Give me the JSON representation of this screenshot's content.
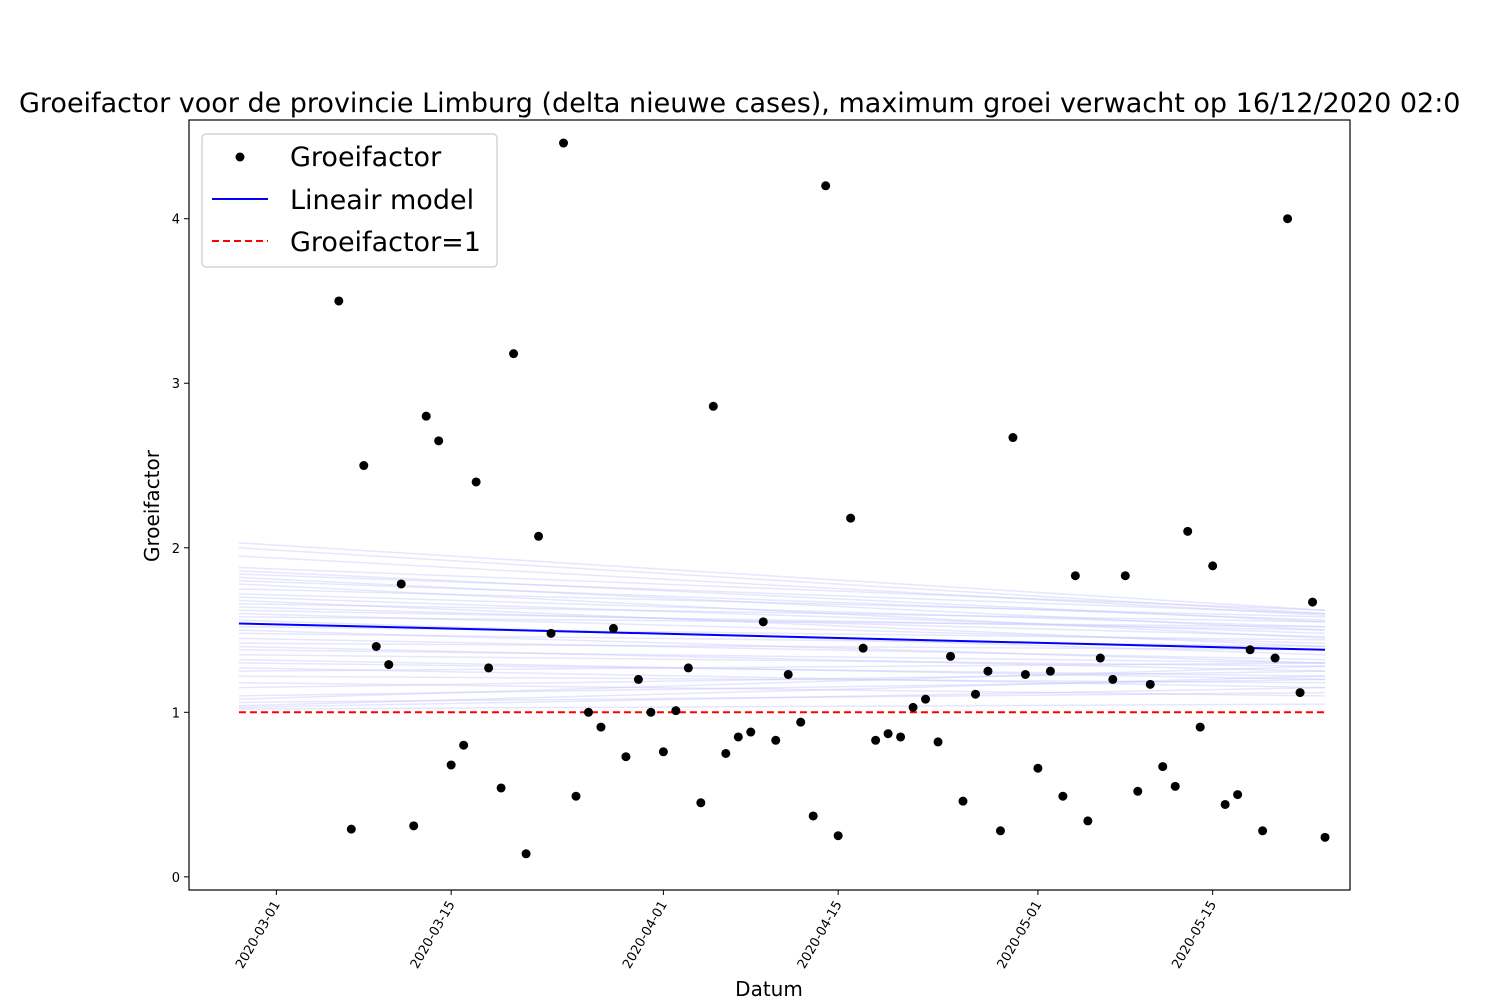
{
  "chart_data": {
    "type": "scatter",
    "title": "Groeifactor voor de provincie Limburg (delta nieuwe cases), maximum groei verwacht op 16/12/2020 02:0",
    "xlabel": "Datum",
    "ylabel": "Groeifactor",
    "x_start_date": "2020-02-27",
    "xlim": [
      "2020-02-23",
      "2020-05-26"
    ],
    "ylim": [
      -0.08,
      4.6
    ],
    "yticks": [
      0,
      1,
      2,
      3,
      4
    ],
    "xticks": [
      "2020-03-01",
      "2020-03-15",
      "2020-04-01",
      "2020-04-15",
      "2020-05-01",
      "2020-05-15"
    ],
    "grid": false,
    "legend_position": "top-left",
    "legend": [
      "Groeifactor",
      "Lineair model",
      "Groeifactor=1"
    ],
    "colors": {
      "points": "#000000",
      "model": "#0000ff",
      "reference": "#ff0000",
      "samples": "#c8c8ff"
    },
    "series": [
      {
        "name": "Groeifactor",
        "kind": "points",
        "x": [
          "2020-03-06",
          "2020-03-07",
          "2020-03-08",
          "2020-03-09",
          "2020-03-10",
          "2020-03-11",
          "2020-03-12",
          "2020-03-13",
          "2020-03-14",
          "2020-03-15",
          "2020-03-16",
          "2020-03-17",
          "2020-03-18",
          "2020-03-19",
          "2020-03-20",
          "2020-03-21",
          "2020-03-22",
          "2020-03-23",
          "2020-03-24",
          "2020-03-25",
          "2020-03-26",
          "2020-03-27",
          "2020-03-28",
          "2020-03-29",
          "2020-03-30",
          "2020-03-31",
          "2020-04-01",
          "2020-04-02",
          "2020-04-03",
          "2020-04-04",
          "2020-04-05",
          "2020-04-06",
          "2020-04-07",
          "2020-04-08",
          "2020-04-09",
          "2020-04-10",
          "2020-04-11",
          "2020-04-12",
          "2020-04-13",
          "2020-04-14",
          "2020-04-15",
          "2020-04-16",
          "2020-04-17",
          "2020-04-18",
          "2020-04-19",
          "2020-04-20",
          "2020-04-21",
          "2020-04-22",
          "2020-04-23",
          "2020-04-24",
          "2020-04-25",
          "2020-04-26",
          "2020-04-27",
          "2020-04-28",
          "2020-04-29",
          "2020-04-30",
          "2020-05-01",
          "2020-05-02",
          "2020-05-03",
          "2020-05-04",
          "2020-05-05",
          "2020-05-06",
          "2020-05-07",
          "2020-05-08",
          "2020-05-09",
          "2020-05-10",
          "2020-05-11",
          "2020-05-12",
          "2020-05-13",
          "2020-05-14",
          "2020-05-15",
          "2020-05-16",
          "2020-05-17",
          "2020-05-18",
          "2020-05-19",
          "2020-05-20",
          "2020-05-21",
          "2020-05-22",
          "2020-05-23",
          "2020-05-24"
        ],
        "y": [
          3.5,
          0.29,
          2.5,
          1.4,
          1.29,
          1.78,
          0.31,
          2.8,
          2.65,
          0.68,
          0.8,
          2.4,
          1.27,
          0.54,
          3.18,
          0.14,
          2.07,
          1.48,
          4.46,
          0.49,
          1.0,
          0.91,
          1.51,
          0.73,
          1.2,
          1.0,
          0.76,
          1.01,
          1.27,
          0.45,
          2.86,
          0.75,
          0.85,
          0.88,
          1.55,
          0.83,
          1.23,
          0.94,
          0.37,
          4.2,
          0.25,
          2.18,
          1.39,
          0.83,
          0.87,
          0.85,
          1.03,
          1.08,
          0.82,
          1.34,
          0.46,
          1.11,
          1.25,
          0.28,
          2.67,
          1.23,
          0.66,
          1.25,
          0.49,
          1.83,
          0.34,
          1.33,
          1.2,
          1.83,
          0.52,
          1.17,
          0.67,
          0.55,
          2.1,
          0.91,
          1.89,
          0.44,
          0.5,
          1.38,
          0.28,
          1.33,
          4.0,
          1.12,
          1.67,
          0.24
        ]
      },
      {
        "name": "Lineair model",
        "kind": "line",
        "x": [
          "2020-02-27",
          "2020-05-24"
        ],
        "y": [
          1.54,
          1.38
        ]
      },
      {
        "name": "Groeifactor=1",
        "kind": "dashed-line",
        "x": [
          "2020-02-27",
          "2020-05-24"
        ],
        "y": [
          1.0,
          1.0
        ]
      }
    ],
    "model_samples": [
      [
        2.03,
        1.62
      ],
      [
        2.0,
        1.6
      ],
      [
        1.95,
        1.59
      ],
      [
        1.88,
        1.62
      ],
      [
        1.86,
        1.55
      ],
      [
        1.84,
        1.6
      ],
      [
        1.82,
        1.5
      ],
      [
        1.8,
        1.56
      ],
      [
        1.78,
        1.45
      ],
      [
        1.75,
        1.58
      ],
      [
        1.72,
        1.52
      ],
      [
        1.7,
        1.48
      ],
      [
        1.68,
        1.4
      ],
      [
        1.66,
        1.55
      ],
      [
        1.64,
        1.46
      ],
      [
        1.62,
        1.5
      ],
      [
        1.6,
        1.42
      ],
      [
        1.58,
        1.52
      ],
      [
        1.56,
        1.35
      ],
      [
        1.52,
        1.44
      ],
      [
        1.5,
        1.3
      ],
      [
        1.48,
        1.4
      ],
      [
        1.45,
        1.32
      ],
      [
        1.42,
        1.38
      ],
      [
        1.4,
        1.25
      ],
      [
        1.38,
        1.3
      ],
      [
        1.35,
        1.28
      ],
      [
        1.32,
        1.2
      ],
      [
        1.3,
        1.22
      ],
      [
        1.27,
        1.15
      ],
      [
        1.25,
        1.3
      ],
      [
        1.22,
        1.18
      ],
      [
        1.18,
        1.1
      ],
      [
        1.15,
        1.25
      ],
      [
        1.1,
        1.2
      ],
      [
        1.06,
        1.12
      ],
      [
        1.04,
        1.22
      ],
      [
        1.02,
        1.05
      ],
      [
        1.03,
        1.15
      ],
      [
        1.08,
        1.28
      ]
    ]
  }
}
